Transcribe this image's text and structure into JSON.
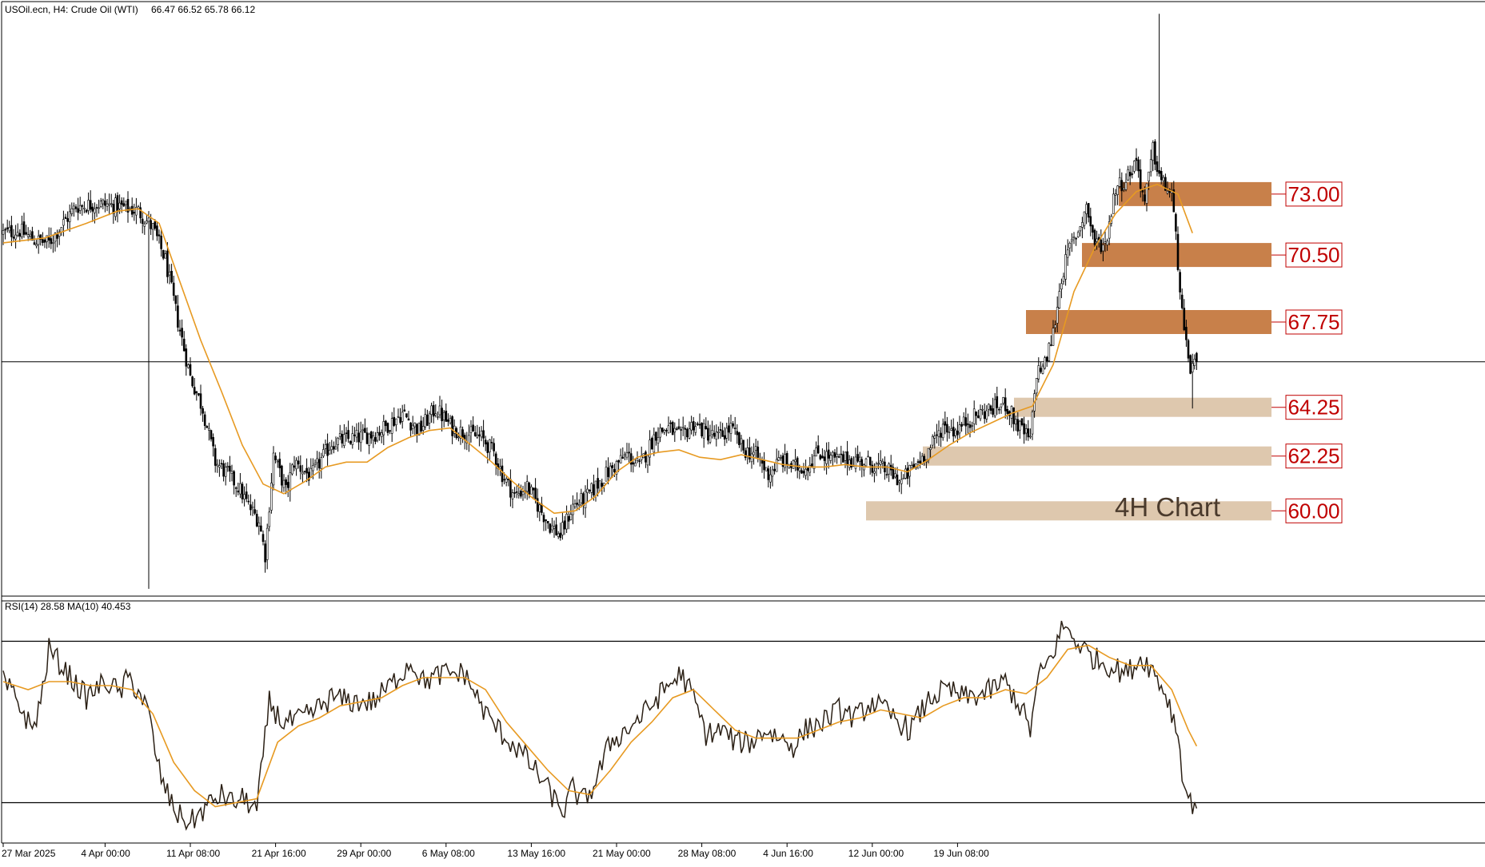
{
  "header": {
    "symbol": "USOil.ecn, H4:  Crude Oil (WTI)",
    "ohlc": "66.47 66.52 65.78 66.12"
  },
  "caption": "4H Chart",
  "rsi_header": "RSI(14) 28.58 MA(10) 40.453",
  "colors": {
    "resistance_zone": "#c8804a",
    "support_zone": "#dec8ae",
    "level_label": "#c00000",
    "moving_average": "#e79a22",
    "rsi_line": "#2b2015",
    "candle": "#000000"
  },
  "chart_data": [
    {
      "type": "candlestick",
      "title": "USOil.ecn, H4: Crude Oil (WTI)",
      "last_ohlc": {
        "open": 66.47,
        "high": 66.52,
        "low": 65.78,
        "close": 66.12
      },
      "current_price_line": 66.12,
      "ylim": [
        56.5,
        80.9
      ],
      "overlay": "moving average (orange)",
      "x_tick_labels": [
        "27 Mar 2025",
        "4 Apr 00:00",
        "11 Apr 08:00",
        "21 Apr 16:00",
        "29 Apr 00:00",
        "6 May 08:00",
        "13 May 16:00",
        "21 May 00:00",
        "28 May 08:00",
        "4 Jun 16:00",
        "12 Jun 00:00",
        "19 Jun 08:00"
      ],
      "price_path": [
        [
          0,
          71.4
        ],
        [
          8,
          71.5
        ],
        [
          15,
          71.1
        ],
        [
          22,
          71.0
        ],
        [
          28,
          71.7
        ],
        [
          35,
          72.5
        ],
        [
          45,
          72.6
        ],
        [
          55,
          72.5
        ],
        [
          65,
          72.3
        ],
        [
          72,
          71.6
        ],
        [
          78,
          70.3
        ],
        [
          84,
          67.8
        ],
        [
          90,
          65.5
        ],
        [
          96,
          64.2
        ],
        [
          102,
          62.0
        ],
        [
          108,
          61.5
        ],
        [
          113,
          61.0
        ],
        [
          118,
          60.2
        ],
        [
          123,
          59.6
        ],
        [
          126,
          58.2
        ],
        [
          130,
          62.3
        ],
        [
          136,
          60.8
        ],
        [
          140,
          62.0
        ],
        [
          148,
          61.4
        ],
        [
          158,
          62.8
        ],
        [
          170,
          63.0
        ],
        [
          180,
          63.2
        ],
        [
          192,
          64.0
        ],
        [
          200,
          63.3
        ],
        [
          208,
          64.2
        ],
        [
          216,
          63.4
        ],
        [
          222,
          63.2
        ],
        [
          230,
          63.0
        ],
        [
          236,
          62.4
        ],
        [
          240,
          61.5
        ],
        [
          246,
          60.6
        ],
        [
          252,
          61.0
        ],
        [
          258,
          60.1
        ],
        [
          263,
          59.4
        ],
        [
          268,
          59.0
        ],
        [
          274,
          60.2
        ],
        [
          280,
          60.5
        ],
        [
          290,
          61.5
        ],
        [
          300,
          62.3
        ],
        [
          306,
          61.8
        ],
        [
          314,
          63.2
        ],
        [
          320,
          63.4
        ],
        [
          326,
          63.0
        ],
        [
          332,
          63.6
        ],
        [
          338,
          63.2
        ],
        [
          344,
          63.0
        ],
        [
          350,
          63.4
        ],
        [
          356,
          62.5
        ],
        [
          362,
          62.3
        ],
        [
          368,
          61.5
        ],
        [
          374,
          62.1
        ],
        [
          380,
          61.8
        ],
        [
          386,
          61.8
        ],
        [
          392,
          62.4
        ],
        [
          400,
          62.1
        ],
        [
          410,
          62.1
        ],
        [
          418,
          61.9
        ],
        [
          426,
          61.6
        ],
        [
          432,
          61.2
        ],
        [
          440,
          62.0
        ],
        [
          446,
          62.6
        ],
        [
          452,
          63.5
        ],
        [
          458,
          63.3
        ],
        [
          464,
          63.7
        ],
        [
          470,
          64.0
        ],
        [
          476,
          64.2
        ],
        [
          482,
          64.4
        ],
        [
          488,
          63.5
        ],
        [
          494,
          62.9
        ],
        [
          497,
          65.7
        ],
        [
          501,
          66.0
        ],
        [
          505,
          67.3
        ],
        [
          509,
          69.6
        ],
        [
          513,
          70.8
        ],
        [
          517,
          71.5
        ],
        [
          521,
          72.5
        ],
        [
          525,
          71.0
        ],
        [
          530,
          70.9
        ],
        [
          535,
          73.3
        ],
        [
          540,
          73.6
        ],
        [
          545,
          74.4
        ],
        [
          549,
          72.6
        ],
        [
          553,
          74.8
        ],
        [
          557,
          73.5
        ],
        [
          562,
          73.0
        ],
        [
          565,
          70.2
        ],
        [
          568,
          67.1
        ],
        [
          571,
          65.9
        ],
        [
          574,
          66.12
        ]
      ],
      "ma_path": [
        [
          0,
          71.0
        ],
        [
          20,
          71.2
        ],
        [
          40,
          71.8
        ],
        [
          55,
          72.3
        ],
        [
          65,
          72.4
        ],
        [
          75,
          71.8
        ],
        [
          85,
          69.4
        ],
        [
          95,
          67.0
        ],
        [
          105,
          64.9
        ],
        [
          115,
          62.7
        ],
        [
          125,
          61.1
        ],
        [
          135,
          60.7
        ],
        [
          145,
          61.2
        ],
        [
          155,
          61.8
        ],
        [
          165,
          62.0
        ],
        [
          175,
          62.0
        ],
        [
          185,
          62.6
        ],
        [
          195,
          63.0
        ],
        [
          205,
          63.3
        ],
        [
          215,
          63.4
        ],
        [
          225,
          62.7
        ],
        [
          235,
          62.0
        ],
        [
          245,
          61.2
        ],
        [
          255,
          60.5
        ],
        [
          265,
          59.9
        ],
        [
          275,
          60.0
        ],
        [
          285,
          60.6
        ],
        [
          295,
          61.6
        ],
        [
          305,
          62.2
        ],
        [
          315,
          62.4
        ],
        [
          325,
          62.5
        ],
        [
          335,
          62.2
        ],
        [
          345,
          62.1
        ],
        [
          355,
          62.3
        ],
        [
          365,
          62.1
        ],
        [
          375,
          61.9
        ],
        [
          385,
          61.8
        ],
        [
          395,
          61.8
        ],
        [
          405,
          61.9
        ],
        [
          415,
          61.8
        ],
        [
          425,
          61.8
        ],
        [
          435,
          61.6
        ],
        [
          445,
          62.1
        ],
        [
          455,
          62.7
        ],
        [
          465,
          63.2
        ],
        [
          475,
          63.6
        ],
        [
          485,
          64.0
        ],
        [
          495,
          64.3
        ],
        [
          505,
          66.0
        ],
        [
          515,
          69.0
        ],
        [
          525,
          70.8
        ],
        [
          535,
          72.2
        ],
        [
          545,
          73.1
        ],
        [
          555,
          73.4
        ],
        [
          565,
          73.0
        ],
        [
          572,
          71.4
        ]
      ]
    },
    {
      "type": "horizontal_zones",
      "levels": [
        {
          "label": "73.00",
          "value": 73.0,
          "kind": "resistance"
        },
        {
          "label": "70.50",
          "value": 70.5,
          "kind": "resistance"
        },
        {
          "label": "67.75",
          "value": 67.75,
          "kind": "resistance"
        },
        {
          "label": "64.25",
          "value": 64.25,
          "kind": "support"
        },
        {
          "label": "62.25",
          "value": 62.25,
          "kind": "support"
        },
        {
          "label": "60.00",
          "value": 60.0,
          "kind": "support"
        }
      ]
    },
    {
      "type": "line",
      "title": "RSI(14) 28.58 MA(10) 40.453",
      "ylim": [
        20,
        80
      ],
      "reference_lines": [
        70,
        30
      ],
      "rsi_path": [
        [
          0,
          60
        ],
        [
          6,
          56
        ],
        [
          10,
          52
        ],
        [
          14,
          48
        ],
        [
          18,
          55
        ],
        [
          22,
          68
        ],
        [
          28,
          64
        ],
        [
          34,
          60
        ],
        [
          40,
          56
        ],
        [
          44,
          58
        ],
        [
          50,
          60
        ],
        [
          56,
          57
        ],
        [
          60,
          61
        ],
        [
          66,
          57
        ],
        [
          70,
          52
        ],
        [
          74,
          40
        ],
        [
          78,
          33
        ],
        [
          84,
          27
        ],
        [
          90,
          25
        ],
        [
          96,
          28
        ],
        [
          102,
          31
        ],
        [
          106,
          32
        ],
        [
          110,
          30
        ],
        [
          116,
          31
        ],
        [
          122,
          28
        ],
        [
          128,
          55
        ],
        [
          134,
          50
        ],
        [
          140,
          50
        ],
        [
          148,
          52
        ],
        [
          158,
          56
        ],
        [
          168,
          55
        ],
        [
          178,
          55
        ],
        [
          188,
          60
        ],
        [
          196,
          65
        ],
        [
          202,
          60
        ],
        [
          212,
          62
        ],
        [
          222,
          62
        ],
        [
          232,
          52
        ],
        [
          240,
          47
        ],
        [
          250,
          42
        ],
        [
          260,
          35
        ],
        [
          266,
          30
        ],
        [
          270,
          28
        ],
        [
          274,
          34
        ],
        [
          278,
          30
        ],
        [
          284,
          34
        ],
        [
          292,
          45
        ],
        [
          300,
          48
        ],
        [
          310,
          53
        ],
        [
          318,
          58
        ],
        [
          326,
          62
        ],
        [
          332,
          56
        ],
        [
          338,
          47
        ],
        [
          346,
          48
        ],
        [
          352,
          45
        ],
        [
          360,
          45
        ],
        [
          366,
          48
        ],
        [
          374,
          46
        ],
        [
          380,
          44
        ],
        [
          386,
          48
        ],
        [
          394,
          50
        ],
        [
          402,
          53
        ],
        [
          410,
          51
        ],
        [
          418,
          55
        ],
        [
          426,
          52
        ],
        [
          436,
          48
        ],
        [
          446,
          56
        ],
        [
          454,
          58
        ],
        [
          462,
          56
        ],
        [
          472,
          57
        ],
        [
          482,
          60
        ],
        [
          490,
          53
        ],
        [
          494,
          48
        ],
        [
          498,
          61
        ],
        [
          504,
          66
        ],
        [
          510,
          74
        ],
        [
          516,
          70
        ],
        [
          524,
          66
        ],
        [
          532,
          64
        ],
        [
          540,
          62
        ],
        [
          548,
          66
        ],
        [
          554,
          62
        ],
        [
          560,
          56
        ],
        [
          565,
          47
        ],
        [
          568,
          34
        ],
        [
          571,
          30
        ],
        [
          574,
          30
        ]
      ],
      "ma_path": [
        [
          0,
          60
        ],
        [
          12,
          58
        ],
        [
          22,
          60
        ],
        [
          32,
          60
        ],
        [
          42,
          59
        ],
        [
          52,
          59
        ],
        [
          62,
          58
        ],
        [
          72,
          52
        ],
        [
          82,
          40
        ],
        [
          92,
          33
        ],
        [
          102,
          29
        ],
        [
          112,
          30
        ],
        [
          122,
          31
        ],
        [
          132,
          45
        ],
        [
          142,
          49
        ],
        [
          152,
          51
        ],
        [
          162,
          54
        ],
        [
          172,
          55
        ],
        [
          182,
          56
        ],
        [
          192,
          59
        ],
        [
          202,
          61
        ],
        [
          212,
          61
        ],
        [
          222,
          61
        ],
        [
          232,
          58
        ],
        [
          242,
          50
        ],
        [
          252,
          44
        ],
        [
          262,
          38
        ],
        [
          272,
          33
        ],
        [
          282,
          32
        ],
        [
          292,
          38
        ],
        [
          302,
          45
        ],
        [
          312,
          50
        ],
        [
          322,
          56
        ],
        [
          332,
          58
        ],
        [
          342,
          53
        ],
        [
          352,
          48
        ],
        [
          362,
          46
        ],
        [
          372,
          46
        ],
        [
          382,
          46
        ],
        [
          392,
          48
        ],
        [
          402,
          50
        ],
        [
          412,
          51
        ],
        [
          422,
          53
        ],
        [
          432,
          52
        ],
        [
          442,
          51
        ],
        [
          452,
          54
        ],
        [
          462,
          56
        ],
        [
          472,
          56
        ],
        [
          482,
          58
        ],
        [
          492,
          57
        ],
        [
          502,
          61
        ],
        [
          512,
          68
        ],
        [
          522,
          69
        ],
        [
          532,
          66
        ],
        [
          542,
          64
        ],
        [
          552,
          64
        ],
        [
          562,
          58
        ],
        [
          570,
          48
        ],
        [
          574,
          44
        ]
      ]
    }
  ]
}
